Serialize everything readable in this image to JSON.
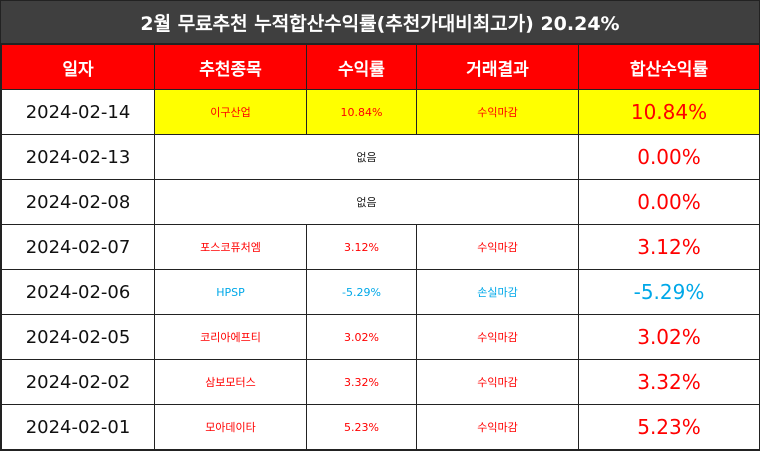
{
  "title": "2월 무료추천 누적합산수익률(추천가대비최고가) 20.24%",
  "headers": [
    "일자",
    "추천종목",
    "수익률",
    "거래결과",
    "합산수익률"
  ],
  "rows": [
    {
      "date": "2024-02-14",
      "stock": "이구산업",
      "rate": "10.84%",
      "result": "수익마감",
      "total": "10.84%"
    },
    {
      "date": "2024-02-13",
      "none_label": "없음",
      "total": "0.00%"
    },
    {
      "date": "2024-02-08",
      "none_label": "없음",
      "total": "0.00%"
    },
    {
      "date": "2024-02-07",
      "stock": "포스코퓨처엠",
      "rate": "3.12%",
      "result": "수익마감",
      "total": "3.12%"
    },
    {
      "date": "2024-02-06",
      "stock": "HPSP",
      "rate": "-5.29%",
      "result": "손실마감",
      "total": "-5.29%"
    },
    {
      "date": "2024-02-05",
      "stock": "코리아에프티",
      "rate": "3.02%",
      "result": "수익마감",
      "total": "3.02%"
    },
    {
      "date": "2024-02-02",
      "stock": "삼보모터스",
      "rate": "3.32%",
      "result": "수익마감",
      "total": "3.32%"
    },
    {
      "date": "2024-02-01",
      "stock": "모아데이타",
      "rate": "5.23%",
      "result": "수익마감",
      "total": "5.23%"
    }
  ],
  "colors": {
    "header_bg": "#ff0000",
    "title_bg": "#3f3f3f",
    "highlight": "#ffff00",
    "profit": "#ff0000",
    "loss": "#00a8e8"
  }
}
